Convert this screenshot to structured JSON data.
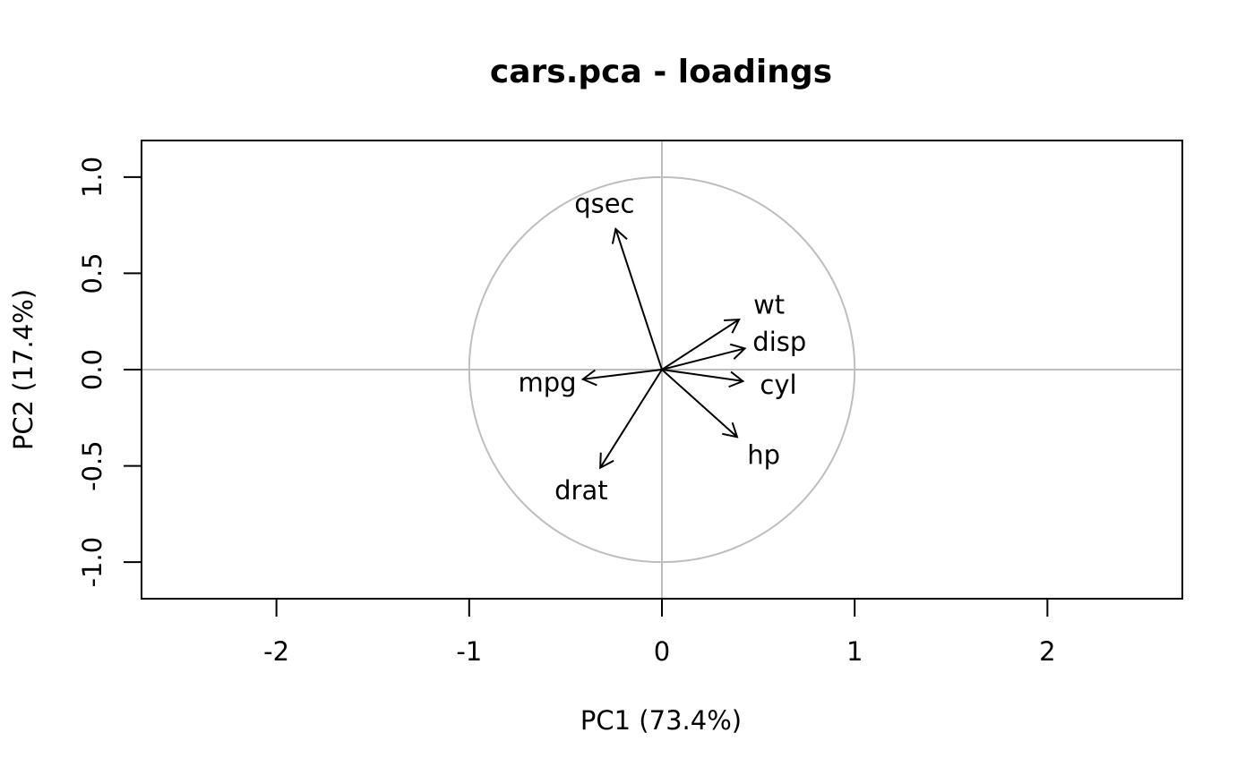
{
  "chart_data": {
    "type": "scatter",
    "subtype": "pca-loadings-biplot",
    "title": "cars.pca - loadings",
    "xlabel": "PC1 (73.4%)",
    "ylabel": "PC2 (17.4%)",
    "xlim": [
      -2.7,
      2.7
    ],
    "ylim": [
      -1.19,
      1.19
    ],
    "x_ticks": [
      -2,
      -1,
      0,
      1,
      2
    ],
    "x_tick_labels": [
      "-2",
      "-1",
      "0",
      "1",
      "2"
    ],
    "y_ticks": [
      -1.0,
      -0.5,
      0.0,
      0.5,
      1.0
    ],
    "y_tick_labels": [
      "-1.0",
      "-0.5",
      "0.0",
      "0.5",
      "1.0"
    ],
    "grid": false,
    "reference_lines": {
      "x": 0,
      "y": 0,
      "color": "#bebebe"
    },
    "unit_circle": {
      "radius": 1,
      "color": "#bebebe"
    },
    "arrow_color": "#000000",
    "loadings": [
      {
        "name": "mpg",
        "x": -0.41,
        "y": -0.05
      },
      {
        "name": "cyl",
        "x": 0.42,
        "y": -0.06
      },
      {
        "name": "disp",
        "x": 0.43,
        "y": 0.11
      },
      {
        "name": "hp",
        "x": 0.39,
        "y": -0.35
      },
      {
        "name": "drat",
        "x": -0.32,
        "y": -0.51
      },
      {
        "name": "wt",
        "x": 0.4,
        "y": 0.26
      },
      {
        "name": "qsec",
        "x": -0.24,
        "y": 0.73
      }
    ]
  }
}
